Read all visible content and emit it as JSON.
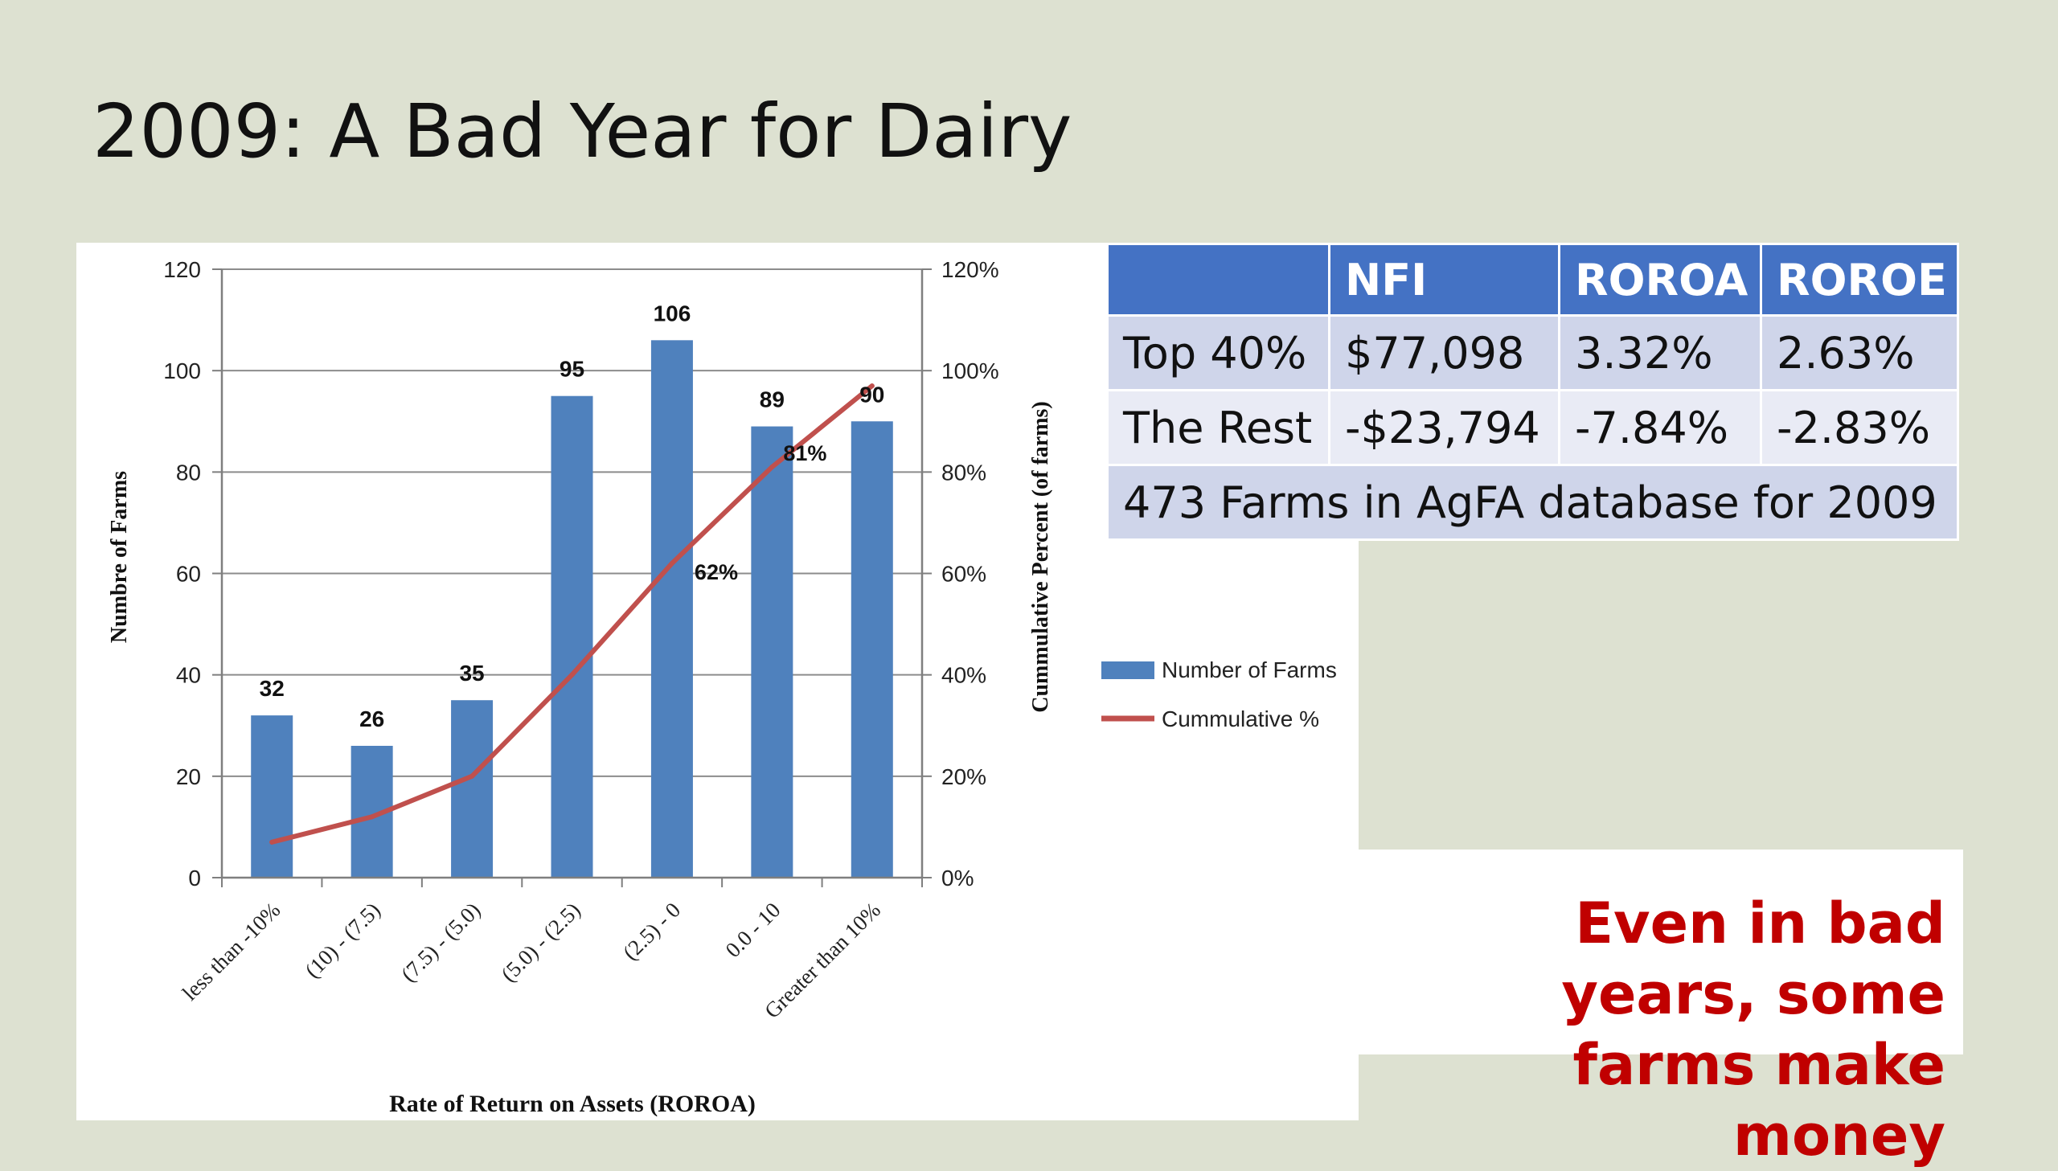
{
  "slide": {
    "title": "2009: A Bad Year for Dairy",
    "callout_line1": "Even in bad years, some",
    "callout_line2": "farms make money"
  },
  "table": {
    "headers": [
      "",
      "NFI",
      "ROROA",
      "ROROE"
    ],
    "rows": [
      [
        "Top 40%",
        "$77,098",
        "3.32%",
        "2.63%"
      ],
      [
        "The Rest",
        "-$23,794",
        "-7.84%",
        "-2.83%"
      ]
    ],
    "footer": "473 Farms in AgFA database for 2009"
  },
  "colors": {
    "bar": "#4f81bd",
    "line": "#c0504d",
    "header": "#4472c4",
    "callout": "#c00000"
  },
  "chart_data": {
    "type": "bar",
    "categories": [
      "less than -10%",
      "(10) - (7.5)",
      "(7.5) - (5.0)",
      "(5.0) - (2.5)",
      "(2.5) - 0",
      "0.0 - 10",
      "Greater than 10%"
    ],
    "series": [
      {
        "name": "Number of Farms",
        "type": "bar",
        "axis": "left",
        "values": [
          32,
          26,
          35,
          95,
          106,
          89,
          90
        ],
        "labels": [
          "32",
          "26",
          "35",
          "95",
          "106",
          "89",
          "90"
        ]
      },
      {
        "name": "Cummulative %",
        "type": "line",
        "axis": "right",
        "values": [
          7,
          12,
          20,
          40,
          62,
          81,
          97
        ],
        "labels": [
          "",
          "",
          "",
          "",
          "62%",
          "81%",
          ""
        ]
      }
    ],
    "xlabel": "Rate of Return on Assets (ROROA)",
    "ylabel": "Numbre of Farms",
    "y2label": "Cummulative Percent (of farms)",
    "ylim": [
      0,
      120
    ],
    "y2lim": [
      0,
      120
    ],
    "yticks": [
      "0",
      "20",
      "40",
      "60",
      "80",
      "100",
      "120"
    ],
    "y2ticks": [
      "0%",
      "20%",
      "40%",
      "60%",
      "80%",
      "100%",
      "120%"
    ],
    "grid": true,
    "legend": "right"
  }
}
